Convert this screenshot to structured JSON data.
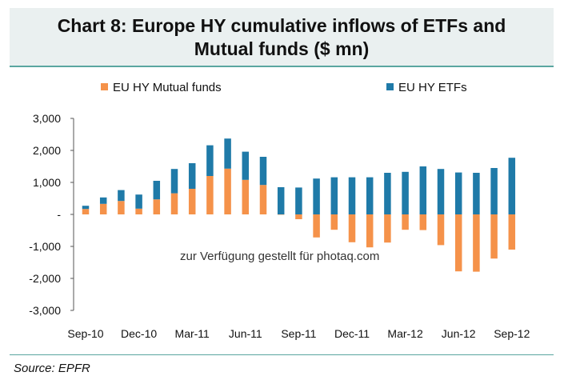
{
  "title": "Chart 8: Europe HY cumulative inflows of ETFs and Mutual funds ($ mn)",
  "source": "Source: EPFR",
  "watermark": "zur Verfügung gestellt für photaq.com",
  "colors": {
    "mutual_funds": "#f5924a",
    "etfs": "#1f7aa8",
    "accent": "#5aa6a0"
  },
  "chart_data": {
    "type": "bar",
    "stacked": "diverging",
    "title": "Chart 8: Europe HY cumulative inflows of ETFs and Mutual funds ($ mn)",
    "xlabel": "",
    "ylabel": "",
    "ylim": [
      -3000,
      3000
    ],
    "yticks": [
      -3000,
      -2000,
      -1000,
      0,
      1000,
      2000,
      3000
    ],
    "ytick_labels": [
      "-3,000",
      "-2,000",
      "-1,000",
      "-",
      "1,000",
      "2,000",
      "3,000"
    ],
    "xtick_labels": [
      "Sep-10",
      "Dec-10",
      "Mar-11",
      "Jun-11",
      "Sep-11",
      "Dec-11",
      "Mar-12",
      "Jun-12",
      "Sep-12"
    ],
    "legend_position": "top",
    "categories": [
      "Sep-10",
      "Oct-10",
      "Nov-10",
      "Dec-10",
      "Jan-11",
      "Feb-11",
      "Mar-11",
      "Apr-11",
      "May-11",
      "Jun-11",
      "Jul-11",
      "Aug-11",
      "Sep-11",
      "Oct-11",
      "Nov-11",
      "Dec-11",
      "Jan-12",
      "Feb-12",
      "Mar-12",
      "Apr-12",
      "May-12",
      "Jun-12",
      "Jul-12",
      "Aug-12",
      "Sep-12"
    ],
    "series": [
      {
        "name": "EU HY Mutual funds",
        "values": [
          170,
          330,
          420,
          180,
          470,
          660,
          800,
          1200,
          1430,
          1080,
          920,
          -10,
          -150,
          -720,
          -480,
          -870,
          -1030,
          -880,
          -480,
          -490,
          -960,
          -1780,
          -1790,
          -1380,
          -1100
        ]
      },
      {
        "name": "EU HY ETFs",
        "values": [
          100,
          200,
          340,
          440,
          580,
          760,
          800,
          960,
          940,
          880,
          880,
          850,
          840,
          1120,
          1160,
          1160,
          1160,
          1300,
          1330,
          1500,
          1420,
          1310,
          1300,
          1450,
          1770
        ]
      }
    ]
  }
}
